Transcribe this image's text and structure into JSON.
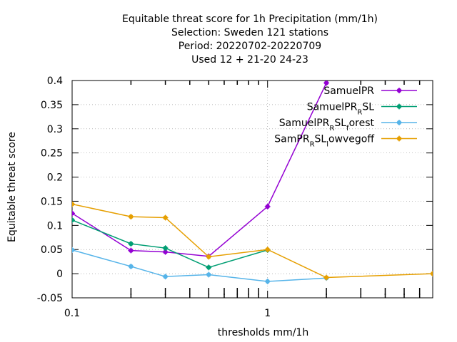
{
  "chart_data": {
    "type": "line",
    "title_lines": [
      "Equitable threat score  for 1h Precipitation (mm/1h)",
      "Selection: Sweden    121 stations",
      "Period: 20220702-20220709",
      "Used  12 + 21-20 24-23"
    ],
    "xlabel": "thresholds mm/1h",
    "ylabel": "Equitable threat score",
    "x_scale": "log",
    "xlim": [
      0.1,
      7
    ],
    "ylim": [
      -0.05,
      0.4
    ],
    "x_ticks": [
      0.1,
      1
    ],
    "x_tick_labels": [
      "0.1",
      "1"
    ],
    "y_ticks": [
      -0.05,
      0,
      0.05,
      0.1,
      0.15,
      0.2,
      0.25,
      0.3,
      0.35,
      0.4
    ],
    "y_tick_labels": [
      "-0.05",
      "0",
      "0.05",
      "0.1",
      "0.15",
      "0.2",
      "0.25",
      "0.3",
      "0.35",
      "0.4"
    ],
    "grid": true,
    "legend_position": "top-right",
    "series": [
      {
        "name": "SamuelPR",
        "label_parts": [
          {
            "t": "SamuelPR"
          }
        ],
        "color": "#9400d3",
        "x": [
          0.1,
          0.2,
          0.3,
          0.5,
          1,
          2
        ],
        "y": [
          0.125,
          0.048,
          0.045,
          0.036,
          0.139,
          0.395
        ]
      },
      {
        "name": "SamuelPR_RSL",
        "label_parts": [
          {
            "t": "SamuelPR"
          },
          {
            "t": "R",
            "sub": true
          },
          {
            "t": "SL"
          }
        ],
        "color": "#009e73",
        "x": [
          0.1,
          0.2,
          0.3,
          0.5,
          1
        ],
        "y": [
          0.111,
          0.062,
          0.053,
          0.013,
          0.049
        ]
      },
      {
        "name": "SamuelPR_RSL_forest",
        "label_parts": [
          {
            "t": "SamuelPR"
          },
          {
            "t": "R",
            "sub": true
          },
          {
            "t": "SL"
          },
          {
            "t": "f",
            "sub": true
          },
          {
            "t": "orest"
          }
        ],
        "color": "#56b4e9",
        "x": [
          0.1,
          0.2,
          0.3,
          0.5,
          1,
          2
        ],
        "y": [
          0.049,
          0.015,
          -0.006,
          -0.002,
          -0.016,
          -0.009
        ]
      },
      {
        "name": "SamPR_RSL_lowvegoff",
        "label_parts": [
          {
            "t": "SamPR"
          },
          {
            "t": "R",
            "sub": true
          },
          {
            "t": "SL"
          },
          {
            "t": "l",
            "sub": true
          },
          {
            "t": "owvegoff"
          }
        ],
        "color": "#e69f00",
        "x": [
          0.1,
          0.2,
          0.3,
          0.5,
          1,
          2,
          7
        ],
        "y": [
          0.144,
          0.118,
          0.116,
          0.035,
          0.05,
          -0.008,
          0
        ]
      }
    ]
  }
}
